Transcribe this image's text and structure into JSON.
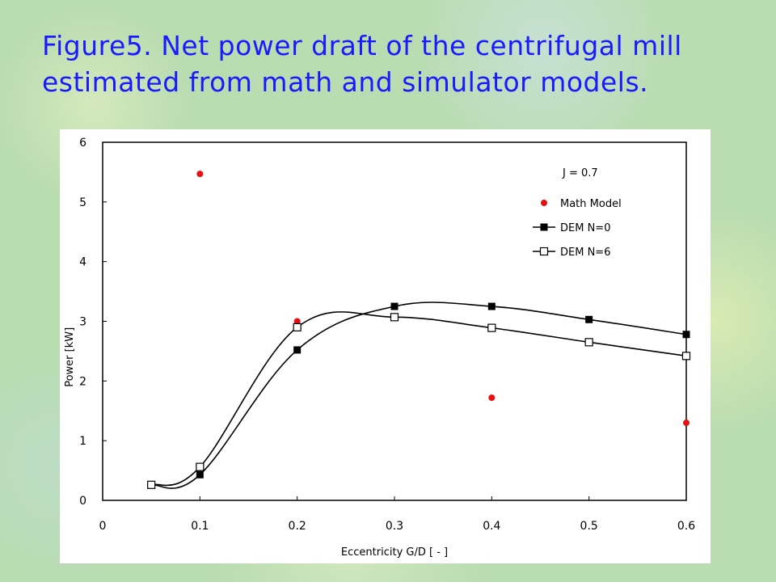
{
  "slide": {
    "title_line1": "Figure5. Net power draft of the centrifugal mill",
    "title_line2": "estimated from math and simulator models."
  },
  "chart_data": {
    "type": "scatter",
    "xlabel": "Eccentricity G/D [ - ]",
    "ylabel": "Power [kW]",
    "xlim": [
      0,
      0.6
    ],
    "ylim": [
      0,
      6
    ],
    "xticks": [
      "0",
      "0.1",
      "0.2",
      "0.3",
      "0.4",
      "0.5",
      "0.6"
    ],
    "yticks": [
      "0",
      "1",
      "2",
      "3",
      "4",
      "5",
      "6"
    ],
    "grid": false,
    "legend_position": "top-right",
    "annotation": "J = 0.7",
    "series": [
      {
        "name": "Math Model",
        "marker": "filled-circle",
        "line": false,
        "color": "#e81010",
        "x": [
          0.1,
          0.2,
          0.4,
          0.6
        ],
        "y": [
          5.47,
          3.0,
          1.72,
          1.3
        ]
      },
      {
        "name": "DEM N=0",
        "marker": "filled-square",
        "line": true,
        "color": "#000000",
        "x": [
          0.05,
          0.1,
          0.2,
          0.3,
          0.4,
          0.5,
          0.6
        ],
        "y": [
          0.26,
          0.43,
          2.52,
          3.25,
          3.25,
          3.03,
          2.78
        ]
      },
      {
        "name": "DEM N=6",
        "marker": "open-square",
        "line": true,
        "color": "#000000",
        "x": [
          0.05,
          0.1,
          0.2,
          0.3,
          0.4,
          0.5,
          0.6
        ],
        "y": [
          0.26,
          0.56,
          2.9,
          3.07,
          2.89,
          2.65,
          2.42
        ]
      }
    ]
  }
}
